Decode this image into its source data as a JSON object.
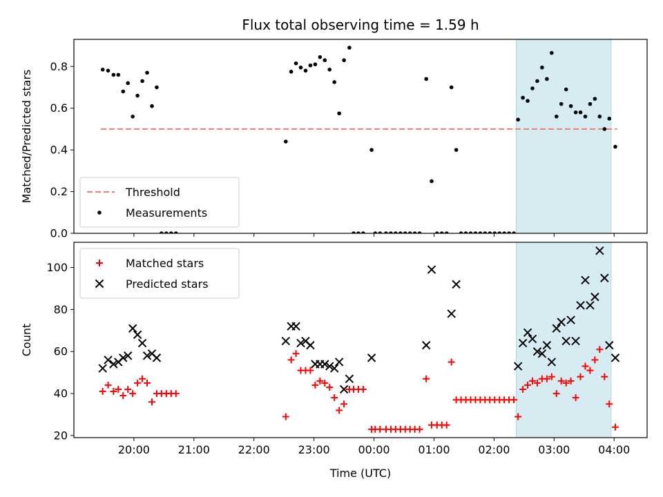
{
  "chart_data": {
    "title": "Flux total observing time = 1.59 h",
    "x_axis": {
      "label": "Time (UTC)",
      "unit": "hours_since_midnight_of_first_evening",
      "range": [
        19.0,
        28.55
      ],
      "ticks": [
        {
          "value": 20,
          "label": "20:00"
        },
        {
          "value": 21,
          "label": "21:00"
        },
        {
          "value": 22,
          "label": "22:00"
        },
        {
          "value": 23,
          "label": "23:00"
        },
        {
          "value": 24,
          "label": "00:00"
        },
        {
          "value": 25,
          "label": "01:00"
        },
        {
          "value": 26,
          "label": "02:00"
        },
        {
          "value": 27,
          "label": "03:00"
        },
        {
          "value": 28,
          "label": "04:00"
        }
      ]
    },
    "highlight_span": {
      "x": [
        26.37,
        27.95
      ],
      "color": "#add8e6"
    },
    "panels": [
      {
        "type": "scatter",
        "ylabel": "Matched/Predicted stars",
        "ylim": [
          0.0,
          0.93
        ],
        "yticks": [
          {
            "value": 0.0,
            "label": "0.0"
          },
          {
            "value": 0.2,
            "label": "0.2"
          },
          {
            "value": 0.4,
            "label": "0.4"
          },
          {
            "value": 0.6,
            "label": "0.6"
          },
          {
            "value": 0.8,
            "label": "0.8"
          }
        ],
        "legend": "lower-left",
        "threshold": {
          "name": "Threshold",
          "value": 0.5,
          "x": [
            19.45,
            28.05
          ],
          "color": "#f08080"
        },
        "series": [
          {
            "name": "Measurements",
            "color": "#000000",
            "marker": "dot",
            "points": [
              [
                19.48,
                0.785
              ],
              [
                19.57,
                0.78
              ],
              [
                19.66,
                0.76
              ],
              [
                19.74,
                0.76
              ],
              [
                19.82,
                0.68
              ],
              [
                19.9,
                0.72
              ],
              [
                19.98,
                0.56
              ],
              [
                20.06,
                0.66
              ],
              [
                20.14,
                0.73
              ],
              [
                20.22,
                0.77
              ],
              [
                20.3,
                0.61
              ],
              [
                20.38,
                0.7
              ],
              [
                20.46,
                0.0
              ],
              [
                20.54,
                0.0
              ],
              [
                20.62,
                0.0
              ],
              [
                20.7,
                0.0
              ],
              [
                22.53,
                0.44
              ],
              [
                22.62,
                0.775
              ],
              [
                22.7,
                0.815
              ],
              [
                22.78,
                0.795
              ],
              [
                22.86,
                0.78
              ],
              [
                22.94,
                0.805
              ],
              [
                23.02,
                0.81
              ],
              [
                23.1,
                0.845
              ],
              [
                23.18,
                0.83
              ],
              [
                23.26,
                0.785
              ],
              [
                23.34,
                0.725
              ],
              [
                23.42,
                0.575
              ],
              [
                23.5,
                0.83
              ],
              [
                23.59,
                0.89
              ],
              [
                23.66,
                0.0
              ],
              [
                23.74,
                0.0
              ],
              [
                23.82,
                0.0
              ],
              [
                23.96,
                0.4
              ],
              [
                24.02,
                0.0
              ],
              [
                24.1,
                0.0
              ],
              [
                24.2,
                0.0
              ],
              [
                24.28,
                0.0
              ],
              [
                24.36,
                0.0
              ],
              [
                24.44,
                0.0
              ],
              [
                24.52,
                0.0
              ],
              [
                24.6,
                0.0
              ],
              [
                24.68,
                0.0
              ],
              [
                24.76,
                0.0
              ],
              [
                24.87,
                0.74
              ],
              [
                24.96,
                0.25
              ],
              [
                25.05,
                0.0
              ],
              [
                25.13,
                0.0
              ],
              [
                25.21,
                0.0
              ],
              [
                25.29,
                0.7
              ],
              [
                25.37,
                0.4
              ],
              [
                25.45,
                0.0
              ],
              [
                25.53,
                0.0
              ],
              [
                25.61,
                0.0
              ],
              [
                25.69,
                0.0
              ],
              [
                25.77,
                0.0
              ],
              [
                25.85,
                0.0
              ],
              [
                25.93,
                0.0
              ],
              [
                26.01,
                0.0
              ],
              [
                26.09,
                0.0
              ],
              [
                26.17,
                0.0
              ],
              [
                26.25,
                0.0
              ],
              [
                26.33,
                0.0
              ],
              [
                26.4,
                0.545
              ],
              [
                26.48,
                0.65
              ],
              [
                26.56,
                0.635
              ],
              [
                26.64,
                0.695
              ],
              [
                26.72,
                0.73
              ],
              [
                26.8,
                0.795
              ],
              [
                26.88,
                0.74
              ],
              [
                26.96,
                0.865
              ],
              [
                27.04,
                0.56
              ],
              [
                27.12,
                0.62
              ],
              [
                27.2,
                0.69
              ],
              [
                27.28,
                0.61
              ],
              [
                27.36,
                0.58
              ],
              [
                27.44,
                0.58
              ],
              [
                27.52,
                0.56
              ],
              [
                27.6,
                0.62
              ],
              [
                27.68,
                0.645
              ],
              [
                27.76,
                0.56
              ],
              [
                27.84,
                0.5
              ],
              [
                27.92,
                0.55
              ],
              [
                28.02,
                0.415
              ]
            ]
          }
        ]
      },
      {
        "type": "scatter",
        "ylabel": "Count",
        "ylim": [
          19.0,
          112.0
        ],
        "yticks": [
          {
            "value": 20,
            "label": "20"
          },
          {
            "value": 40,
            "label": "40"
          },
          {
            "value": 60,
            "label": "60"
          },
          {
            "value": 80,
            "label": "80"
          },
          {
            "value": 100,
            "label": "100"
          }
        ],
        "legend": "upper-left",
        "series": [
          {
            "name": "Matched stars",
            "color": "#ff0000",
            "marker": "plus",
            "points": [
              [
                19.48,
                41
              ],
              [
                19.57,
                44
              ],
              [
                19.66,
                41
              ],
              [
                19.74,
                42
              ],
              [
                19.82,
                39
              ],
              [
                19.9,
                42
              ],
              [
                19.98,
                40
              ],
              [
                20.06,
                45
              ],
              [
                20.14,
                47
              ],
              [
                20.22,
                45
              ],
              [
                20.3,
                36
              ],
              [
                20.38,
                40
              ],
              [
                20.46,
                40
              ],
              [
                20.54,
                40
              ],
              [
                20.62,
                40
              ],
              [
                20.7,
                40
              ],
              [
                22.53,
                29
              ],
              [
                22.62,
                56
              ],
              [
                22.7,
                59
              ],
              [
                22.78,
                51
              ],
              [
                22.86,
                51
              ],
              [
                22.94,
                51
              ],
              [
                23.02,
                44
              ],
              [
                23.1,
                46
              ],
              [
                23.18,
                45
              ],
              [
                23.26,
                43
              ],
              [
                23.34,
                38
              ],
              [
                23.42,
                32
              ],
              [
                23.5,
                35
              ],
              [
                23.59,
                42
              ],
              [
                23.66,
                42
              ],
              [
                23.74,
                42
              ],
              [
                23.82,
                42
              ],
              [
                23.96,
                23
              ],
              [
                24.02,
                23
              ],
              [
                24.1,
                23
              ],
              [
                24.2,
                23
              ],
              [
                24.28,
                23
              ],
              [
                24.36,
                23
              ],
              [
                24.44,
                23
              ],
              [
                24.52,
                23
              ],
              [
                24.6,
                23
              ],
              [
                24.68,
                23
              ],
              [
                24.76,
                23
              ],
              [
                24.87,
                47
              ],
              [
                24.96,
                25
              ],
              [
                25.05,
                25
              ],
              [
                25.13,
                25
              ],
              [
                25.21,
                25
              ],
              [
                25.29,
                55
              ],
              [
                25.37,
                37
              ],
              [
                25.45,
                37
              ],
              [
                25.53,
                37
              ],
              [
                25.61,
                37
              ],
              [
                25.69,
                37
              ],
              [
                25.77,
                37
              ],
              [
                25.85,
                37
              ],
              [
                25.93,
                37
              ],
              [
                26.01,
                37
              ],
              [
                26.09,
                37
              ],
              [
                26.17,
                37
              ],
              [
                26.25,
                37
              ],
              [
                26.33,
                37
              ],
              [
                26.4,
                29
              ],
              [
                26.48,
                42
              ],
              [
                26.56,
                44
              ],
              [
                26.64,
                46
              ],
              [
                26.72,
                45
              ],
              [
                26.8,
                47
              ],
              [
                26.88,
                47
              ],
              [
                26.96,
                48
              ],
              [
                27.04,
                40
              ],
              [
                27.12,
                46
              ],
              [
                27.2,
                45
              ],
              [
                27.28,
                46
              ],
              [
                27.36,
                38
              ],
              [
                27.44,
                48
              ],
              [
                27.52,
                53
              ],
              [
                27.6,
                51
              ],
              [
                27.68,
                56
              ],
              [
                27.76,
                61
              ],
              [
                27.84,
                48
              ],
              [
                27.92,
                35
              ],
              [
                28.02,
                24
              ]
            ]
          },
          {
            "name": "Predicted stars",
            "color": "#000000",
            "marker": "x",
            "points": [
              [
                19.48,
                52
              ],
              [
                19.57,
                56
              ],
              [
                19.66,
                54
              ],
              [
                19.74,
                55
              ],
              [
                19.82,
                57
              ],
              [
                19.9,
                58
              ],
              [
                19.98,
                71
              ],
              [
                20.06,
                68
              ],
              [
                20.14,
                64
              ],
              [
                20.22,
                58
              ],
              [
                20.3,
                59
              ],
              [
                20.38,
                57
              ],
              [
                22.53,
                65
              ],
              [
                22.62,
                72
              ],
              [
                22.7,
                72
              ],
              [
                22.78,
                64
              ],
              [
                22.86,
                65
              ],
              [
                22.94,
                63
              ],
              [
                23.02,
                54
              ],
              [
                23.1,
                54
              ],
              [
                23.18,
                54
              ],
              [
                23.26,
                53
              ],
              [
                23.34,
                52
              ],
              [
                23.42,
                55
              ],
              [
                23.5,
                42
              ],
              [
                23.59,
                47
              ],
              [
                23.96,
                57
              ],
              [
                24.87,
                63
              ],
              [
                24.96,
                99
              ],
              [
                25.29,
                78
              ],
              [
                25.37,
                92
              ],
              [
                26.4,
                53
              ],
              [
                26.48,
                64
              ],
              [
                26.56,
                69
              ],
              [
                26.64,
                66
              ],
              [
                26.72,
                60
              ],
              [
                26.8,
                59
              ],
              [
                26.88,
                63
              ],
              [
                26.96,
                55
              ],
              [
                27.04,
                71
              ],
              [
                27.12,
                74
              ],
              [
                27.2,
                65
              ],
              [
                27.28,
                75
              ],
              [
                27.36,
                65
              ],
              [
                27.44,
                82
              ],
              [
                27.52,
                94
              ],
              [
                27.6,
                82
              ],
              [
                27.68,
                86
              ],
              [
                27.76,
                108
              ],
              [
                27.84,
                95
              ],
              [
                27.92,
                63
              ],
              [
                28.02,
                57
              ]
            ]
          }
        ]
      }
    ]
  }
}
